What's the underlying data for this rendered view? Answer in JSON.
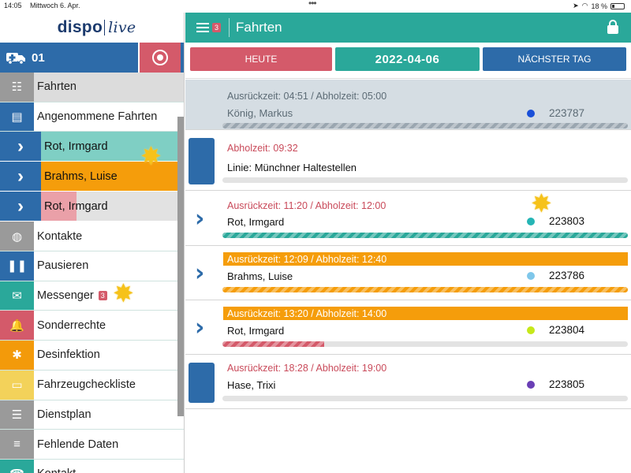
{
  "status_bar": {
    "time": "14:05",
    "date": "Mittwoch 6. Apr.",
    "battery": "18 %"
  },
  "sidebar": {
    "logo_a": "disp",
    "logo_b": "o",
    "logo_c": "live",
    "vehicle_label": "01",
    "menu": [
      {
        "label": "Fahrten",
        "icon": "list-check-icon",
        "color": "#9a9a9a"
      },
      {
        "label": "Angenommene Fahrten",
        "icon": "id-card-icon",
        "color": "#2d6ba9"
      },
      {
        "label": "Kontakte",
        "icon": "users-icon",
        "color": "#9a9a9a"
      },
      {
        "label": "Pausieren",
        "icon": "pause-icon",
        "color": "#2d6ba9"
      },
      {
        "label": "Messenger",
        "badge": "3",
        "icon": "envelope-icon",
        "color": "#2aa89a"
      },
      {
        "label": "Sonderrechte",
        "icon": "bell-icon",
        "color": "#d45a6a"
      },
      {
        "label": "Desinfektion",
        "icon": "bug-icon",
        "color": "#f39a0a"
      },
      {
        "label": "Fahrzeugcheckliste",
        "icon": "clipboard-icon",
        "color": "#f3d25a"
      },
      {
        "label": "Dienstplan",
        "icon": "list-icon",
        "color": "#9a9a9a"
      },
      {
        "label": "Fehlende Daten",
        "icon": "database-icon",
        "color": "#9a9a9a"
      },
      {
        "label": "Kontakt",
        "icon": "phone-icon",
        "color": "#2aa89a"
      }
    ],
    "subs": [
      {
        "label": "Rot, Irmgard",
        "fill_color": "#7fcfc4",
        "fill_pct": 100
      },
      {
        "label": "Brahms, Luise",
        "fill_color": "#f59d0b",
        "fill_pct": 100
      },
      {
        "label": "Rot, Irmgard",
        "fill_color": "#eaa0a8",
        "fill_pct": 25
      }
    ]
  },
  "header": {
    "badge": "3",
    "title": "Fahrten"
  },
  "daynav": {
    "prev": "HEUTE",
    "current": "2022-04-06",
    "next": "NÄCHSTER TAG"
  },
  "trips": [
    {
      "times": "Ausrückzeit: 04:51 / Abholzeit: 05:00",
      "name": "König, Markus",
      "number": "223787",
      "dot_color": "#1a4fd8",
      "bar_color": "#9aa6b0",
      "bar_pct": 100,
      "times_bg": "",
      "times_color": "#5c6b75",
      "card_bg": "#d5dde3",
      "leading": "none"
    },
    {
      "times": "Abholzeit: 09:32",
      "name": "Linie: Münchner Haltestellen",
      "number": "",
      "dot_color": "",
      "bar_color": "",
      "bar_pct": 0,
      "times_bg": "",
      "times_color": "#c94a5a",
      "card_bg": "#fff",
      "leading": "marker"
    },
    {
      "times": "Ausrückzeit: 11:20 / Abholzeit: 12:00",
      "name": "Rot, Irmgard",
      "number": "223803",
      "dot_color": "#25b5b5",
      "bar_color": "#2aa89a",
      "bar_pct": 100,
      "times_bg": "",
      "times_color": "#c94a5a",
      "card_bg": "#fff",
      "leading": "arrow"
    },
    {
      "times": "Ausrückzeit: 12:09 / Abholzeit: 12:40",
      "name": "Brahms, Luise",
      "number": "223786",
      "dot_color": "#7fc7ea",
      "bar_color": "#f59d0b",
      "bar_pct": 100,
      "times_bg": "#f59d0b",
      "times_color": "#fff",
      "card_bg": "#fff",
      "leading": "arrow"
    },
    {
      "times": "Ausrückzeit: 13:20 / Abholzeit: 14:00",
      "name": "Rot, Irmgard",
      "number": "223804",
      "dot_color": "#c6e81a",
      "bar_color": "#d45a6a",
      "bar_pct": 25,
      "times_bg": "#f59d0b",
      "times_color": "#fff",
      "card_bg": "#fff",
      "leading": "arrow"
    },
    {
      "times": "Ausrückzeit: 18:28 / Abholzeit: 19:00",
      "name": "Hase, Trixi",
      "number": "223805",
      "dot_color": "#6a3fb5",
      "bar_color": "",
      "bar_pct": 0,
      "times_bg": "",
      "times_color": "#c94a5a",
      "card_bg": "#fff",
      "leading": "marker"
    }
  ]
}
